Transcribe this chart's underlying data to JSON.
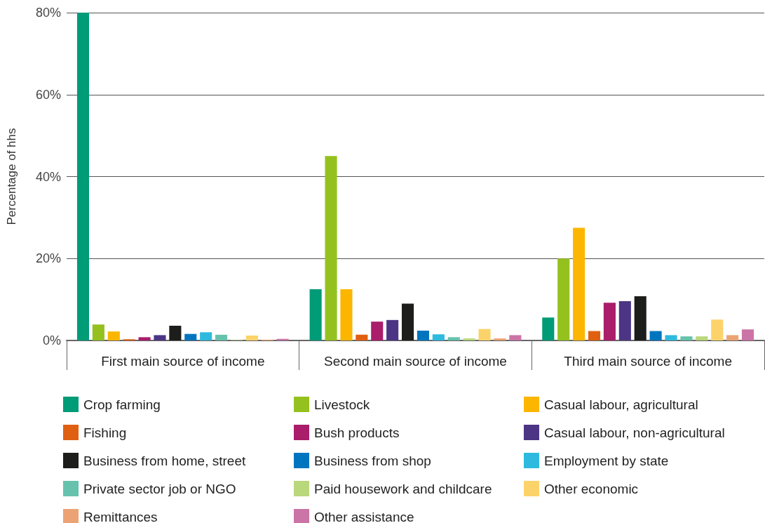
{
  "chart_data": {
    "type": "bar",
    "ylabel": "Percentage of hhs",
    "categories": [
      "First main source of income",
      "Second main source of income",
      "Third main source of income"
    ],
    "series": [
      {
        "name": "Crop farming",
        "color": "#009b77",
        "values": [
          80,
          12.5,
          5.6
        ]
      },
      {
        "name": "Livestock",
        "color": "#95c11f",
        "values": [
          3.9,
          45,
          20
        ]
      },
      {
        "name": "Casual labour, agricultural",
        "color": "#fdb600",
        "values": [
          2.2,
          12.5,
          27.5
        ]
      },
      {
        "name": "Fishing",
        "color": "#e06012",
        "values": [
          0.3,
          1.4,
          2.3
        ]
      },
      {
        "name": "Bush products",
        "color": "#a91d6b",
        "values": [
          0.8,
          4.6,
          9.2
        ]
      },
      {
        "name": "Casual labour, non-agricultural",
        "color": "#4c3584",
        "values": [
          1.3,
          5.0,
          9.6
        ]
      },
      {
        "name": "Business from home, street",
        "color": "#1d1d1b",
        "values": [
          3.6,
          9.0,
          10.8
        ]
      },
      {
        "name": "Business from shop",
        "color": "#0075bf",
        "values": [
          1.6,
          2.4,
          2.3
        ]
      },
      {
        "name": "Employment by state",
        "color": "#2ebadf",
        "values": [
          2.0,
          1.5,
          1.3
        ]
      },
      {
        "name": "Private sector job or NGO",
        "color": "#66c2ad",
        "values": [
          1.4,
          0.8,
          1.0
        ]
      },
      {
        "name": "Paid housework and childcare",
        "color": "#b9d77b",
        "values": [
          0.1,
          0.5,
          1.0
        ]
      },
      {
        "name": "Other economic",
        "color": "#fcd36a",
        "values": [
          1.2,
          2.8,
          5.1
        ]
      },
      {
        "name": "Remittances",
        "color": "#eca374",
        "values": [
          0.2,
          0.5,
          1.3
        ]
      },
      {
        "name": "Other assistance",
        "color": "#cb74a6",
        "values": [
          0.4,
          1.3,
          2.7
        ]
      }
    ],
    "ylim": [
      0,
      80
    ],
    "yticks": [
      {
        "value": 0,
        "label": "0%"
      },
      {
        "value": 20,
        "label": "20%"
      },
      {
        "value": 40,
        "label": "40%"
      },
      {
        "value": 60,
        "label": "60%"
      },
      {
        "value": 80,
        "label": "80%"
      }
    ],
    "grid": "y",
    "legend": "bottom"
  }
}
